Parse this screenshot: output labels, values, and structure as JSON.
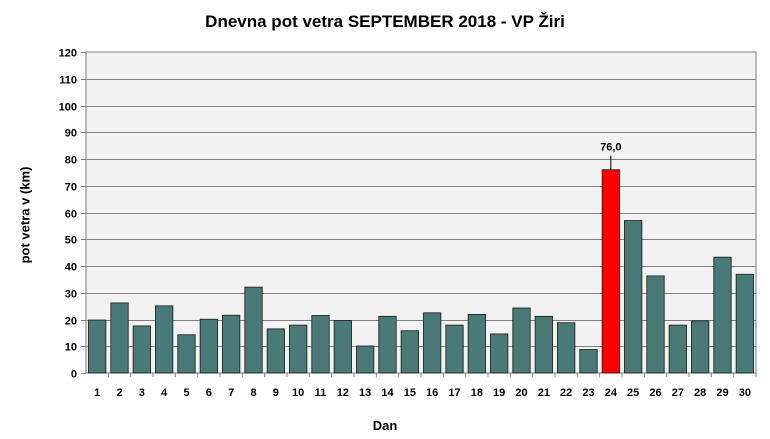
{
  "chart_data": {
    "type": "bar",
    "title": "Dnevna pot vetra SEPTEMBER 2018 - VP Žiri",
    "xlabel": "Dan",
    "ylabel": "pot vetra  v (km)",
    "ylim": [
      0,
      120
    ],
    "ytick_step": 10,
    "grid": true,
    "categories": [
      "1",
      "2",
      "3",
      "4",
      "5",
      "6",
      "7",
      "8",
      "9",
      "10",
      "11",
      "12",
      "13",
      "14",
      "15",
      "16",
      "17",
      "18",
      "19",
      "20",
      "21",
      "22",
      "23",
      "24",
      "25",
      "26",
      "27",
      "28",
      "29",
      "30"
    ],
    "values": [
      19.8,
      26.2,
      17.6,
      25.1,
      14.3,
      20.1,
      21.6,
      32.1,
      16.5,
      17.9,
      21.5,
      19.6,
      10.1,
      21.2,
      15.8,
      22.5,
      17.9,
      21.9,
      14.6,
      24.3,
      21.2,
      18.8,
      8.8,
      76.0,
      57.0,
      36.3,
      17.9,
      19.5,
      43.3,
      36.9
    ],
    "bar_color": "#4a7a78",
    "highlight_color": "#ff0000",
    "highlight_category": "24",
    "annotation": {
      "category": "24",
      "text": "76,0"
    }
  }
}
